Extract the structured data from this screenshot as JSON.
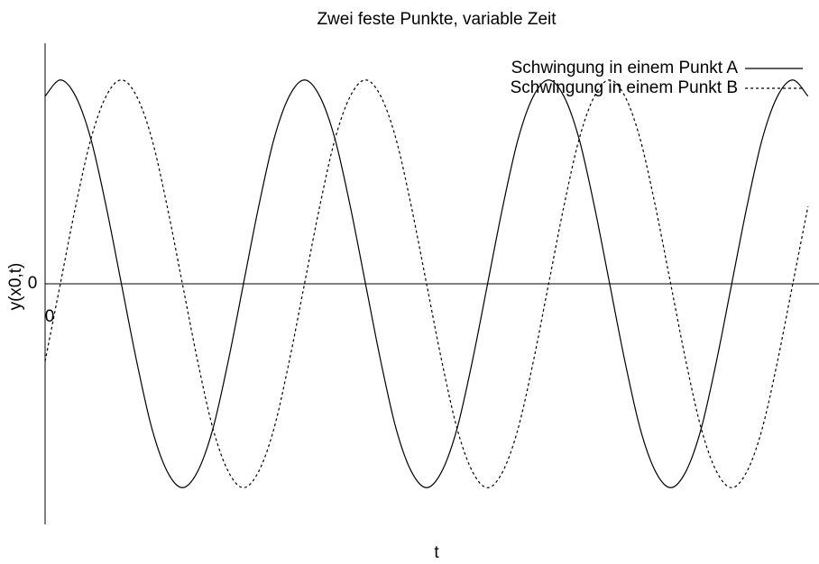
{
  "chart_data": {
    "type": "line",
    "title": "Zwei feste Punkte, variable Zeit",
    "xlabel": "t",
    "ylabel": "y(x0,t)",
    "x": [
      0,
      0.0625,
      0.125,
      0.1875,
      0.25,
      0.3125,
      0.375,
      0.4375,
      0.5,
      0.5625,
      0.625,
      0.6875,
      0.75,
      0.8125,
      0.875,
      0.9375,
      1,
      1.0625,
      1.125,
      1.1875,
      1.25,
      1.3125,
      1.375,
      1.4375,
      1.5,
      1.5625,
      1.625,
      1.6875,
      1.75,
      1.8125,
      1.875,
      1.9375,
      2,
      2.0625,
      2.125,
      2.1875,
      2.25,
      2.3125,
      2.375,
      2.4375,
      2.5,
      2.5625,
      2.625,
      2.6875,
      2.75,
      2.8125,
      2.875,
      2.9375,
      3,
      3.0625,
      3.125
    ],
    "series": [
      {
        "name": "Schwingung in einem Punkt A",
        "color": "#000000",
        "style": "solid",
        "values": [
          0.92,
          1,
          0.92,
          0.71,
          0.38,
          0,
          -0.38,
          -0.71,
          -0.92,
          -1,
          -0.92,
          -0.71,
          -0.38,
          0,
          0.38,
          0.71,
          0.92,
          1,
          0.92,
          0.71,
          0.38,
          0,
          -0.38,
          -0.71,
          -0.92,
          -1,
          -0.92,
          -0.71,
          -0.38,
          0,
          0.38,
          0.71,
          0.92,
          1,
          0.92,
          0.71,
          0.38,
          0,
          -0.38,
          -0.71,
          -0.92,
          -1,
          -0.92,
          -0.71,
          -0.38,
          0,
          0.38,
          0.71,
          0.92,
          1,
          0.92
        ]
      },
      {
        "name": "Schwingung in einem Punkt B",
        "color": "#000000",
        "style": "dotted",
        "values": [
          -0.38,
          0,
          0.38,
          0.71,
          0.92,
          1,
          0.92,
          0.71,
          0.38,
          0,
          -0.38,
          -0.71,
          -0.92,
          -1,
          -0.92,
          -0.71,
          -0.38,
          0,
          0.38,
          0.71,
          0.92,
          1,
          0.92,
          0.71,
          0.38,
          0,
          -0.38,
          -0.71,
          -0.92,
          -1,
          -0.92,
          -0.71,
          -0.38,
          0,
          0.38,
          0.71,
          0.92,
          1,
          0.92,
          0.71,
          0.38,
          0,
          -0.38,
          -0.71,
          -0.92,
          -1,
          -0.92,
          -0.71,
          -0.38,
          0,
          0.38
        ]
      }
    ],
    "xlim": [
      0,
      3.17
    ],
    "ylim": [
      -1.18,
      1.18
    ],
    "xticks": [
      0
    ],
    "yticks": [
      0
    ],
    "legend": "top-right"
  }
}
